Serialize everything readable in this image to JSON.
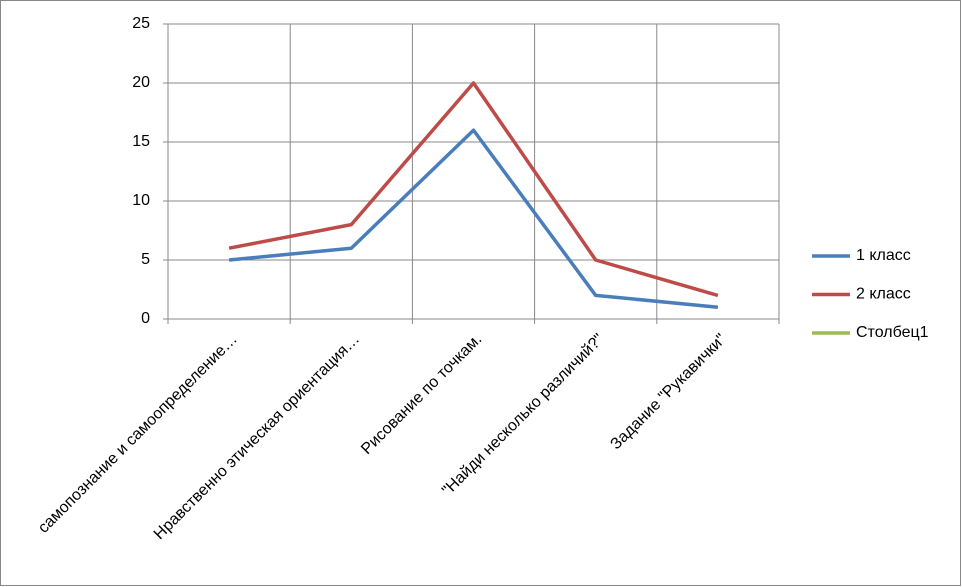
{
  "chart_data": {
    "type": "line",
    "categories": [
      "самопознание и самоопределение…",
      "Нравственно этическая ориентация…",
      "Рисование по точкам.",
      "\"Найди несколько различий?\"",
      "Задание \"Рукавички\""
    ],
    "series": [
      {
        "name": "1 класс",
        "color": "#4a7ebb",
        "values": [
          5,
          6,
          16,
          2,
          1
        ]
      },
      {
        "name": "2 класс",
        "color": "#be4b48",
        "values": [
          6,
          8,
          20,
          5,
          2
        ]
      },
      {
        "name": "Столбец1",
        "color": "#9bbb59",
        "values": [
          null,
          null,
          null,
          null,
          null
        ]
      }
    ],
    "ylim": [
      0,
      25
    ],
    "yticks": [
      0,
      5,
      10,
      15,
      20,
      25
    ],
    "grid": true,
    "legend": "right"
  }
}
